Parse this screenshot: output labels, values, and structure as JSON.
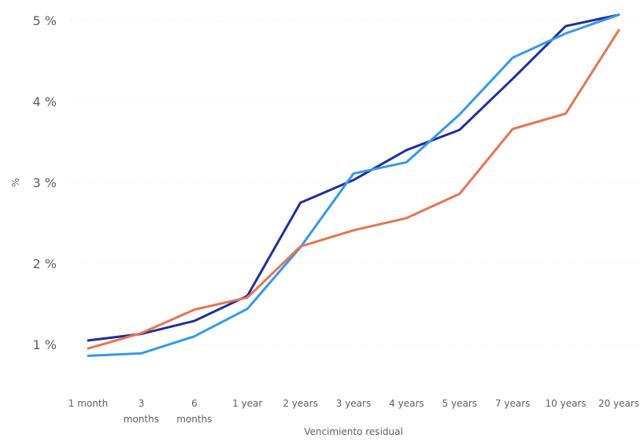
{
  "chart_data": {
    "type": "line",
    "title": "",
    "xlabel": "Vencimiento residual",
    "ylabel": "%",
    "categories": [
      [
        "1 month"
      ],
      [
        "3",
        "months"
      ],
      [
        "6",
        "months"
      ],
      [
        "1 year"
      ],
      [
        "2 years"
      ],
      [
        "3 years"
      ],
      [
        "4 years"
      ],
      [
        "5 years"
      ],
      [
        "7 years"
      ],
      [
        "10 years"
      ],
      [
        "20 years"
      ]
    ],
    "yticks": [
      1,
      2,
      3,
      4,
      5
    ],
    "ytick_labels": [
      "1 %",
      "2 %",
      "3 %",
      "4 %",
      "5 %"
    ],
    "ylim": [
      0.8,
      5.1
    ],
    "grid": true,
    "legend": "none",
    "series": [
      {
        "color": "#1f2e9e",
        "values": [
          1.05,
          1.13,
          1.29,
          1.6,
          2.75,
          3.03,
          3.4,
          3.65,
          4.28,
          4.93,
          5.07
        ]
      },
      {
        "color": "#3399ee",
        "values": [
          0.86,
          0.89,
          1.1,
          1.44,
          2.2,
          3.11,
          3.25,
          3.84,
          4.54,
          4.84,
          5.07
        ]
      },
      {
        "color": "#e8744f",
        "values": [
          0.95,
          1.14,
          1.43,
          1.58,
          2.21,
          2.41,
          2.56,
          2.86,
          3.66,
          3.85,
          4.88
        ]
      }
    ]
  }
}
